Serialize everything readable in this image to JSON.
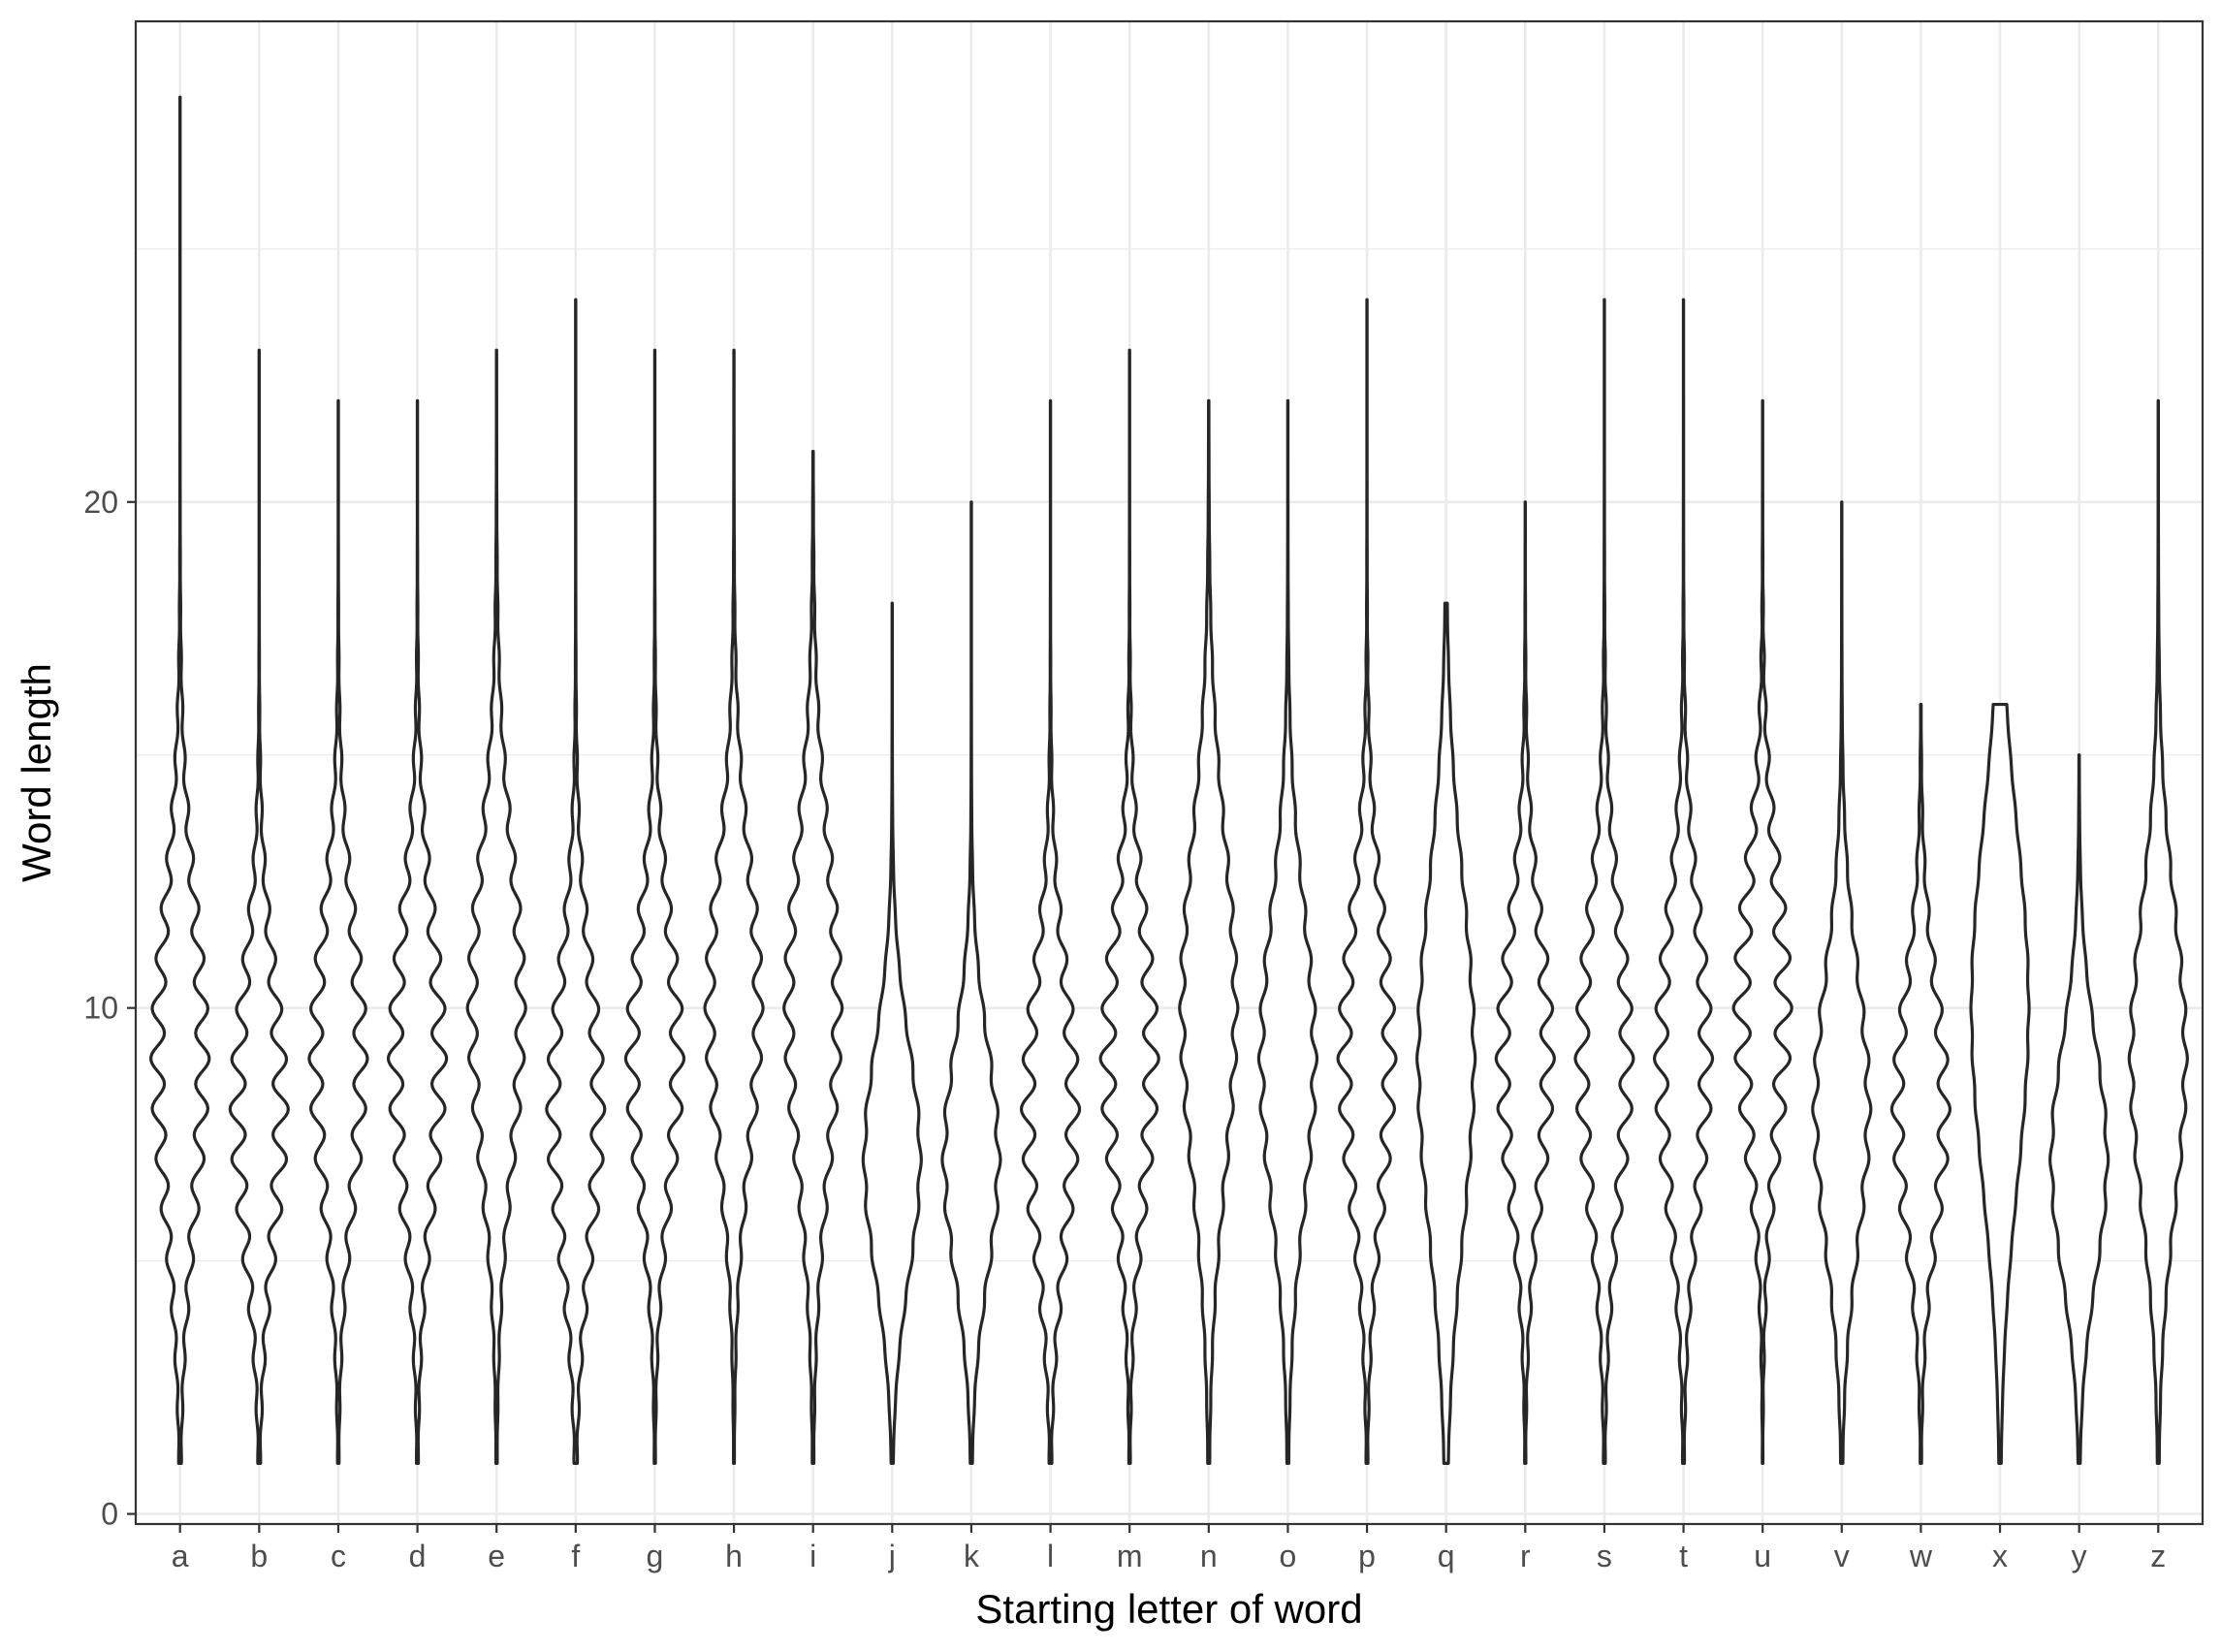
{
  "chart_data": {
    "type": "violin",
    "xlabel": "Starting letter of word",
    "ylabel": "Word length",
    "ylim": [
      -0.2,
      29.5
    ],
    "y_ticks": [
      0,
      10,
      20
    ],
    "y_minor_ticks": [
      5,
      15,
      25
    ],
    "grid": true,
    "colors": {
      "outline": "#262626",
      "fill": "#ffffff",
      "grid": "#ebebeb",
      "panel_border": "#333333"
    },
    "categories": [
      "a",
      "b",
      "c",
      "d",
      "e",
      "f",
      "g",
      "h",
      "i",
      "j",
      "k",
      "l",
      "m",
      "n",
      "o",
      "p",
      "q",
      "r",
      "s",
      "t",
      "u",
      "v",
      "w",
      "x",
      "y",
      "z"
    ],
    "violins": [
      {
        "letter": "a",
        "min": 1,
        "max": 28,
        "peak": 9,
        "spread": 3.2,
        "wiggle": 0.3
      },
      {
        "letter": "b",
        "min": 1,
        "max": 23,
        "peak": 8,
        "spread": 2.8,
        "wiggle": 0.35
      },
      {
        "letter": "c",
        "min": 1,
        "max": 22,
        "peak": 9,
        "spread": 2.9,
        "wiggle": 0.3
      },
      {
        "letter": "d",
        "min": 1,
        "max": 22,
        "peak": 9,
        "spread": 3.0,
        "wiggle": 0.33
      },
      {
        "letter": "e",
        "min": 1,
        "max": 23,
        "peak": 10,
        "spread": 3.2,
        "wiggle": 0.2
      },
      {
        "letter": "f",
        "min": 1,
        "max": 24,
        "peak": 8,
        "spread": 2.9,
        "wiggle": 0.3
      },
      {
        "letter": "g",
        "min": 1,
        "max": 23,
        "peak": 9,
        "spread": 2.8,
        "wiggle": 0.3
      },
      {
        "letter": "h",
        "min": 1,
        "max": 23,
        "peak": 10,
        "spread": 3.0,
        "wiggle": 0.2
      },
      {
        "letter": "i",
        "min": 1,
        "max": 21,
        "peak": 10,
        "spread": 3.3,
        "wiggle": 0.2
      },
      {
        "letter": "j",
        "min": 1,
        "max": 18,
        "peak": 7,
        "spread": 2.3,
        "wiggle": 0.05
      },
      {
        "letter": "k",
        "min": 1,
        "max": 20,
        "peak": 7,
        "spread": 2.3,
        "wiggle": 0.08
      },
      {
        "letter": "l",
        "min": 1,
        "max": 22,
        "peak": 8,
        "spread": 2.8,
        "wiggle": 0.3
      },
      {
        "letter": "m",
        "min": 1,
        "max": 23,
        "peak": 9,
        "spread": 2.9,
        "wiggle": 0.35
      },
      {
        "letter": "n",
        "min": 1,
        "max": 22,
        "peak": 10,
        "spread": 3.4,
        "wiggle": 0.1
      },
      {
        "letter": "o",
        "min": 1,
        "max": 22,
        "peak": 9,
        "spread": 3.0,
        "wiggle": 0.1
      },
      {
        "letter": "p",
        "min": 1,
        "max": 24,
        "peak": 9,
        "spread": 3.0,
        "wiggle": 0.3
      },
      {
        "letter": "q",
        "min": 1,
        "max": 18,
        "peak": 9,
        "spread": 3.5,
        "wiggle": 0.05
      },
      {
        "letter": "r",
        "min": 1,
        "max": 20,
        "peak": 9,
        "spread": 2.8,
        "wiggle": 0.3
      },
      {
        "letter": "s",
        "min": 1,
        "max": 24,
        "peak": 9,
        "spread": 3.0,
        "wiggle": 0.3
      },
      {
        "letter": "t",
        "min": 1,
        "max": 24,
        "peak": 9,
        "spread": 3.0,
        "wiggle": 0.3
      },
      {
        "letter": "u",
        "min": 1,
        "max": 22,
        "peak": 10,
        "spread": 2.9,
        "wiggle": 0.4
      },
      {
        "letter": "v",
        "min": 1,
        "max": 20,
        "peak": 8,
        "spread": 2.7,
        "wiggle": 0.1
      },
      {
        "letter": "w",
        "min": 1,
        "max": 16,
        "peak": 8,
        "spread": 2.5,
        "wiggle": 0.25
      },
      {
        "letter": "x",
        "min": 1,
        "max": 16,
        "peak": 10,
        "spread": 3.5,
        "wiggle": 0.02
      },
      {
        "letter": "y",
        "min": 1,
        "max": 15,
        "peak": 7,
        "spread": 2.3,
        "wiggle": 0.05
      },
      {
        "letter": "z",
        "min": 1,
        "max": 22,
        "peak": 9,
        "spread": 3.0,
        "wiggle": 0.08
      }
    ]
  }
}
